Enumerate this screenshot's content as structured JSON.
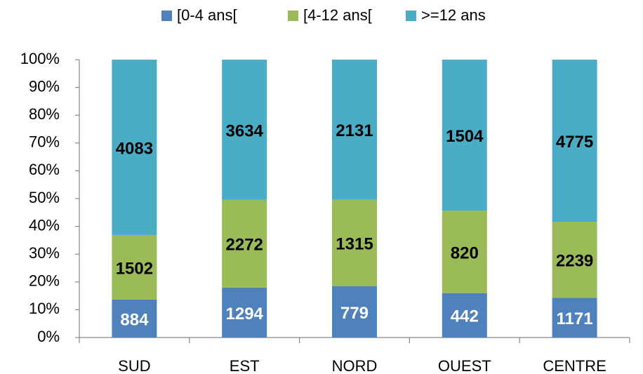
{
  "chart_data": {
    "type": "bar",
    "stacking": "percent",
    "categories": [
      "SUD",
      "EST",
      "NORD",
      "OUEST",
      "CENTRE"
    ],
    "series": [
      {
        "name": "[0-4 ans[",
        "color": "#4f81bd",
        "label_color": "#ffffff",
        "values": [
          884,
          1294,
          779,
          442,
          1171
        ]
      },
      {
        "name": "[4-12 ans[",
        "color": "#9bbb59",
        "label_color": "#000000",
        "values": [
          1502,
          2272,
          1315,
          820,
          2239
        ]
      },
      {
        "name": ">=12 ans",
        "color": "#4bacc6",
        "label_color": "#000000",
        "values": [
          4083,
          3634,
          2131,
          1504,
          4775
        ]
      }
    ],
    "ylim": [
      0,
      100
    ],
    "yticks": [
      {
        "value": 0,
        "label": "0%"
      },
      {
        "value": 10,
        "label": "10%"
      },
      {
        "value": 20,
        "label": "20%"
      },
      {
        "value": 30,
        "label": "30%"
      },
      {
        "value": 40,
        "label": "40%"
      },
      {
        "value": 50,
        "label": "50%"
      },
      {
        "value": 60,
        "label": "60%"
      },
      {
        "value": 70,
        "label": "70%"
      },
      {
        "value": 80,
        "label": "80%"
      },
      {
        "value": 90,
        "label": "90%"
      },
      {
        "value": 100,
        "label": "100%"
      }
    ],
    "legend": "top",
    "grid": false
  }
}
